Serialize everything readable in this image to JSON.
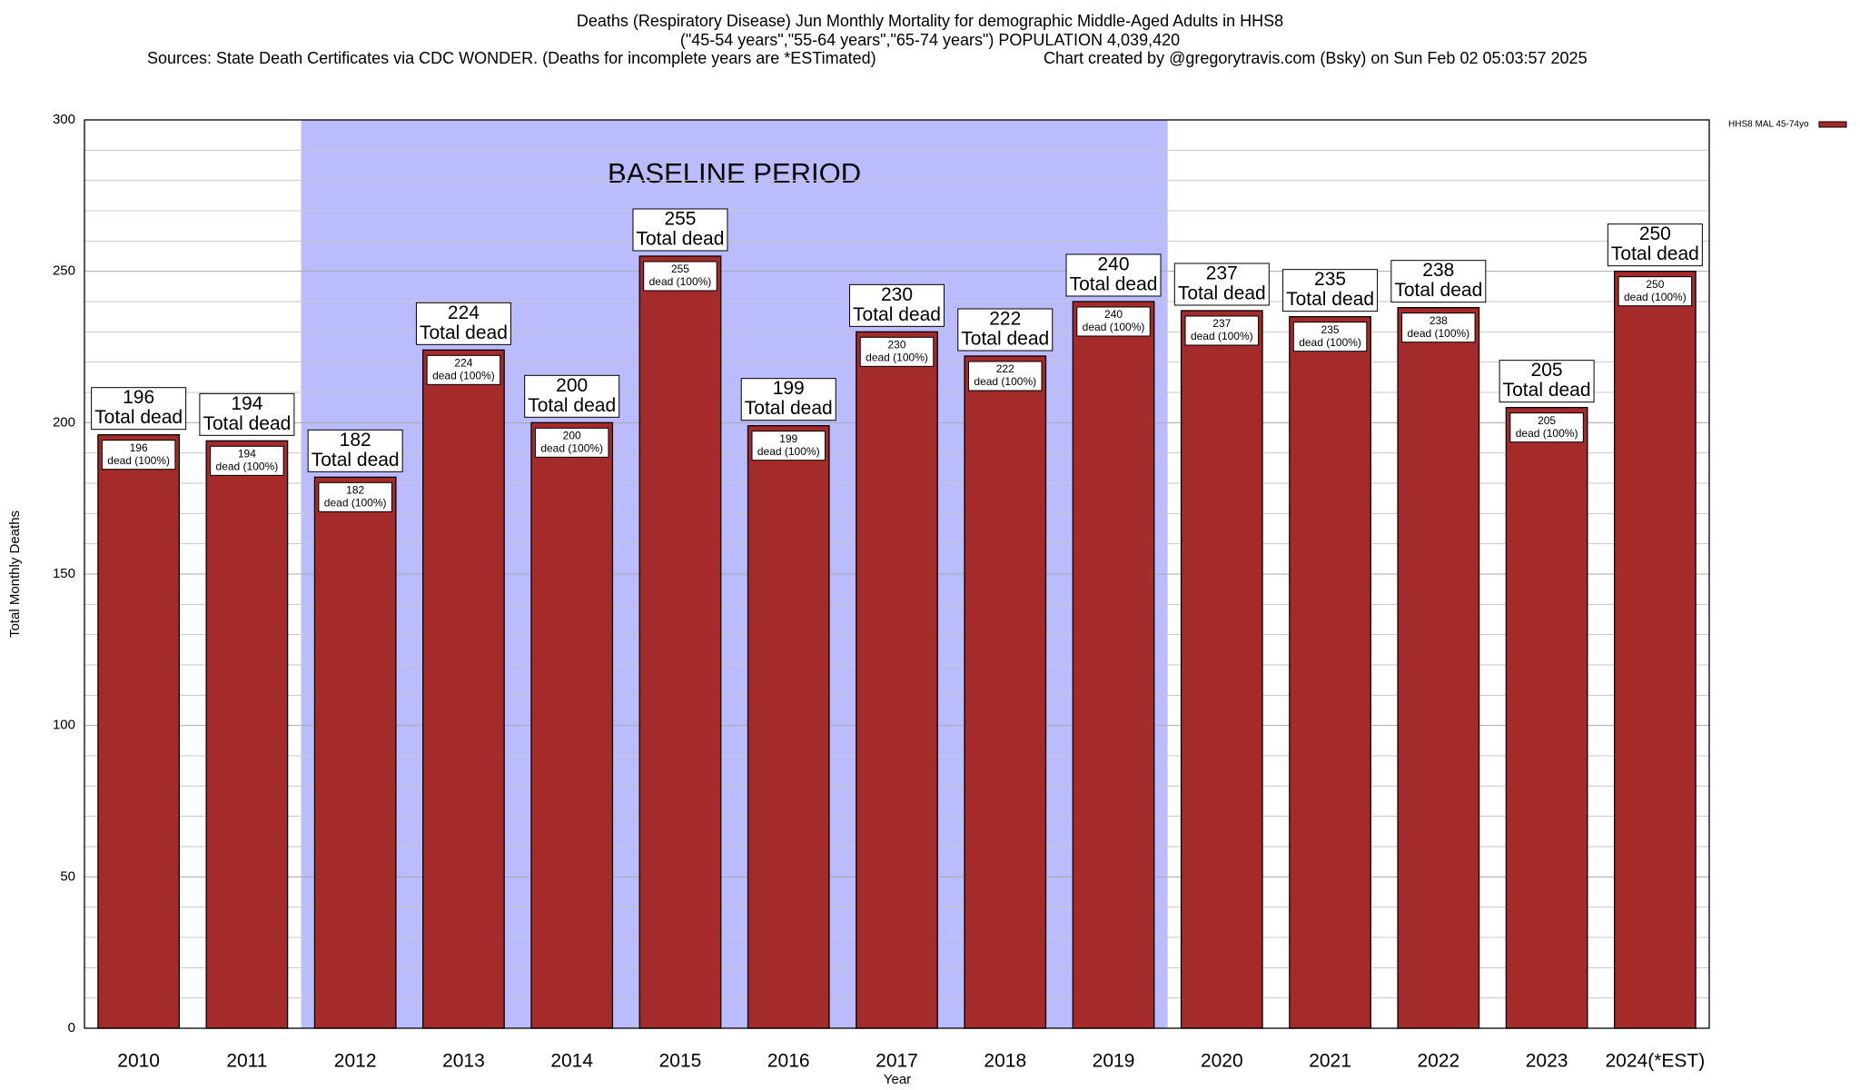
{
  "chart_data": {
    "type": "bar",
    "title": "Deaths (Respiratory Disease) Jun Monthly Mortality for demographic Middle-Aged Adults in HHS8",
    "subtitle": "(\"45-54 years\",\"55-64 years\",\"65-74 years\") POPULATION 4,039,420",
    "source": "Sources: State Death Certificates via CDC WONDER. (Deaths for incomplete years are *ESTimated)",
    "credit": "Chart created by @gregorytravis.com (Bsky) on Sun Feb 02 05:03:57 2025",
    "x_label": "Year",
    "y_label": "Total Monthly Deaths",
    "categories": [
      "2010",
      "2011",
      "2012",
      "2013",
      "2014",
      "2015",
      "2016",
      "2017",
      "2018",
      "2019",
      "2020",
      "2021",
      "2022",
      "2023",
      "2024(*EST)"
    ],
    "series": [
      {
        "name": "HHS8 MAL 45-74yo",
        "color": "#a52a2a",
        "values": [
          196,
          194,
          182,
          224,
          200,
          255,
          199,
          230,
          222,
          240,
          237,
          235,
          238,
          205,
          250
        ]
      }
    ],
    "bar_label_text": "Total dead",
    "inner_label_text": "dead (100%)",
    "shade": {
      "label": "BASELINE PERIOD",
      "from": "2012",
      "to": "2019",
      "color": "#bbbbff"
    },
    "ylim": [
      0,
      300
    ],
    "yticks": [
      0,
      50,
      100,
      150,
      200,
      250,
      300
    ],
    "minor_yticks": [
      10,
      20,
      30,
      40,
      60,
      70,
      80,
      90,
      110,
      120,
      130,
      140,
      160,
      170,
      180,
      190,
      210,
      220,
      230,
      240,
      260,
      270,
      280,
      290
    ],
    "grid": true,
    "legend": "top-right"
  }
}
